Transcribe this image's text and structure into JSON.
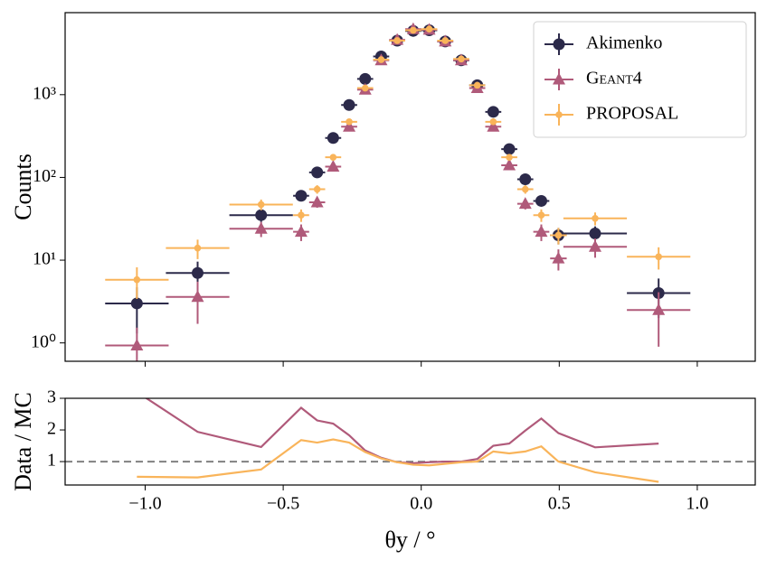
{
  "chart_data": [
    {
      "type": "errorbar",
      "ylabel": "Counts",
      "log_y": true,
      "xlim": [
        -1.29,
        1.21
      ],
      "ylim": [
        0.6,
        9800
      ],
      "xticks": [
        {
          "value": -1.0,
          "label": "−1.0"
        },
        {
          "value": -0.5,
          "label": "−0.5"
        },
        {
          "value": 0.0,
          "label": "0.0"
        },
        {
          "value": 0.5,
          "label": "0.5"
        },
        {
          "value": 1.0,
          "label": "1.0"
        }
      ],
      "yticks": [
        {
          "value": 1,
          "label": "10⁰"
        },
        {
          "value": 10,
          "label": "10¹"
        },
        {
          "value": 100,
          "label": "10²"
        },
        {
          "value": 1000,
          "label": "10³"
        }
      ],
      "legend": "upper right",
      "x": [
        -1.03,
        -0.81,
        -0.58,
        -0.435,
        -0.377,
        -0.319,
        -0.261,
        -0.203,
        -0.145,
        -0.087,
        -0.029,
        0.029,
        0.087,
        0.145,
        0.203,
        0.261,
        0.319,
        0.377,
        0.435,
        0.497,
        0.63,
        0.86
      ],
      "xerr": [
        0.115,
        0.115,
        0.115,
        0.029,
        0.029,
        0.029,
        0.029,
        0.029,
        0.029,
        0.029,
        0.029,
        0.029,
        0.029,
        0.029,
        0.029,
        0.029,
        0.029,
        0.029,
        0.029,
        0.03,
        0.115,
        0.115
      ],
      "series": [
        {
          "name": "Akimenko",
          "color": "#2c2a4a",
          "marker": "circle",
          "values": [
            3,
            7,
            35,
            60,
            115,
            300,
            750,
            1550,
            2900,
            4500,
            5900,
            6000,
            4400,
            2600,
            1300,
            620,
            220,
            95,
            52,
            20,
            21,
            4
          ],
          "errors": [
            1.7,
            2.6,
            6,
            8,
            11,
            17,
            27,
            39,
            54,
            67,
            77,
            77,
            66,
            51,
            36,
            25,
            15,
            10,
            7,
            4.5,
            4.6,
            2
          ]
        },
        {
          "name": "Geant4",
          "color": "#b05a7a",
          "marker": "triangle",
          "values": [
            0.93,
            3.6,
            24,
            22,
            50,
            135,
            410,
            1150,
            2600,
            4600,
            6200,
            6100,
            4400,
            2600,
            1200,
            410,
            140,
            48,
            22,
            10.5,
            14.5,
            2.5
          ],
          "errors": [
            0.6,
            1.9,
            5,
            5,
            7,
            12,
            20,
            34,
            51,
            68,
            79,
            78,
            66,
            51,
            35,
            20,
            12,
            7,
            5,
            3,
            3.8,
            1.6
          ]
        },
        {
          "name": "PROPOSAL",
          "color": "#f9b45a",
          "marker": "dot",
          "values": [
            5.8,
            14,
            47,
            35,
            72,
            175,
            470,
            1200,
            2650,
            4500,
            6000,
            6200,
            4500,
            2700,
            1300,
            470,
            175,
            72,
            35,
            20,
            32,
            11
          ],
          "errors": [
            2.4,
            3.7,
            7,
            6,
            8.5,
            13,
            22,
            35,
            51,
            67,
            77,
            79,
            67,
            52,
            36,
            22,
            13,
            8.5,
            6,
            4.5,
            5.7,
            3.3
          ]
        }
      ]
    },
    {
      "type": "line",
      "ylabel": "Data / MC",
      "xlabel": "θy / °",
      "xlim": [
        -1.29,
        1.21
      ],
      "ylim": [
        0.26,
        3
      ],
      "xticks": [
        {
          "value": -1.0,
          "label": "−1.0"
        },
        {
          "value": -0.5,
          "label": "−0.5"
        },
        {
          "value": 0.0,
          "label": "0.0"
        },
        {
          "value": 0.5,
          "label": "0.5"
        },
        {
          "value": 1.0,
          "label": "1.0"
        }
      ],
      "yticks": [
        1,
        2,
        3
      ],
      "reference_line": 1,
      "x": [
        -1.03,
        -0.81,
        -0.58,
        -0.435,
        -0.377,
        -0.319,
        -0.261,
        -0.203,
        -0.145,
        -0.087,
        -0.029,
        0.029,
        0.087,
        0.145,
        0.203,
        0.261,
        0.319,
        0.377,
        0.435,
        0.497,
        0.63,
        0.86
      ],
      "series": [
        {
          "color": "#b05a7a",
          "values": [
            3.2,
            1.94,
            1.46,
            2.7,
            2.3,
            2.2,
            1.83,
            1.35,
            1.12,
            0.98,
            0.95,
            0.98,
            1.0,
            1.0,
            1.08,
            1.5,
            1.57,
            1.98,
            2.36,
            1.9,
            1.45,
            1.57
          ]
        },
        {
          "color": "#f9b45a",
          "values": [
            0.52,
            0.5,
            0.75,
            1.68,
            1.6,
            1.7,
            1.6,
            1.3,
            1.1,
            0.98,
            0.9,
            0.88,
            0.93,
            0.98,
            1.0,
            1.32,
            1.26,
            1.32,
            1.48,
            1.0,
            0.66,
            0.36
          ]
        }
      ]
    }
  ]
}
